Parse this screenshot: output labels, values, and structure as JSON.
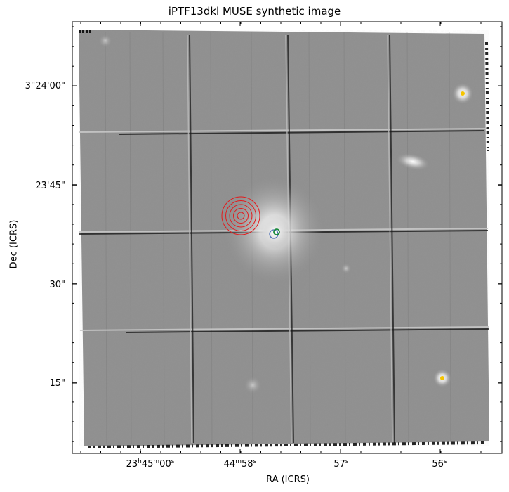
{
  "title": "iPTF13dkl MUSE synthetic image",
  "axes": {
    "xlabel": "RA (ICRS)",
    "ylabel": "Dec (ICRS)",
    "yticks": [
      {
        "label": "3°24'00\"",
        "value_arcsec": 0
      },
      {
        "label": "23'45\"",
        "value_arcsec": -15
      },
      {
        "label": "30\"",
        "value_arcsec": -30
      },
      {
        "label": "15\"",
        "value_arcsec": -45
      }
    ],
    "xticks": [
      {
        "h": "23",
        "m": "45",
        "s": "00",
        "text": "23h45m00s"
      },
      {
        "m": "44",
        "s": "58",
        "text": "44m58s"
      },
      {
        "s": "57",
        "text": "57s"
      },
      {
        "s": "56",
        "text": "56s"
      }
    ]
  },
  "image": {
    "type": "grayscale astronomical field",
    "colormap": "gray",
    "features": [
      "bright host galaxy nucleus",
      "two point sources marked yellow",
      "edge-on galaxy upper right",
      "detector slice grid pattern"
    ]
  },
  "markers": {
    "transient_contours": {
      "color": "#e41a1c",
      "shape": "concentric circles",
      "count": 5
    },
    "blue_circle": {
      "color": "#4a6fb5"
    },
    "green_circle": {
      "color": "#1a8a3a"
    },
    "star_markers": {
      "color": "#f5c400"
    }
  }
}
